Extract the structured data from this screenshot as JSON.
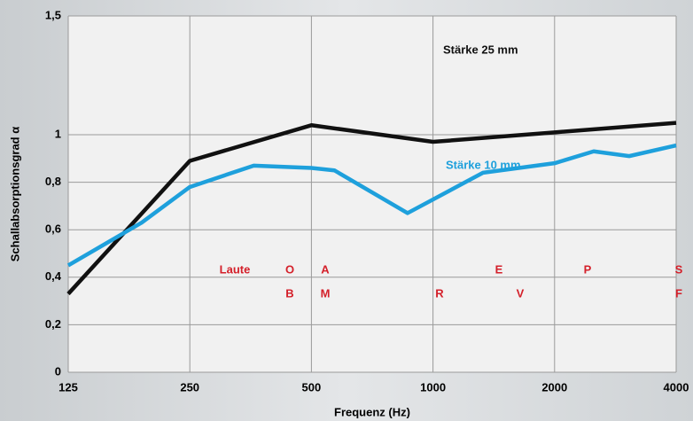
{
  "chart_data": {
    "type": "line",
    "x_label": "Frequenz (Hz)",
    "y_label": "Schallabsorptionsgrad α",
    "xscale": "log",
    "xlim": [
      125,
      4000
    ],
    "xticks": [
      125,
      250,
      500,
      1000,
      2000,
      4000
    ],
    "ylim": [
      0,
      1.5
    ],
    "yticks": [
      0,
      {
        "value": 0.2,
        "label": "0,2"
      },
      {
        "value": 0.4,
        "label": "0,4"
      },
      {
        "value": 0.6,
        "label": "0,6"
      },
      {
        "value": 0.8,
        "label": "0,8"
      },
      1,
      {
        "value": 1.5,
        "label": "1,5"
      }
    ],
    "grid": true,
    "series": [
      {
        "name": "Stärke 25 mm",
        "color": "#111111",
        "x": [
          125,
          250,
          500,
          1000,
          2000,
          4000
        ],
        "values": [
          0.33,
          0.89,
          1.04,
          0.97,
          1.01,
          1.05
        ]
      },
      {
        "name": "Stärke 10 mm",
        "color": "#1ea0dc",
        "x": [
          125,
          190,
          250,
          360,
          500,
          570,
          865,
          1330,
          2000,
          2500,
          3060,
          4000
        ],
        "values": [
          0.45,
          0.63,
          0.78,
          0.87,
          0.86,
          0.85,
          0.67,
          0.84,
          0.88,
          0.93,
          0.91,
          0.955
        ]
      }
    ],
    "annotations": [
      "Laute",
      "O",
      "B",
      "A",
      "M",
      "R",
      "E",
      "V",
      "P",
      "S",
      "F"
    ]
  }
}
